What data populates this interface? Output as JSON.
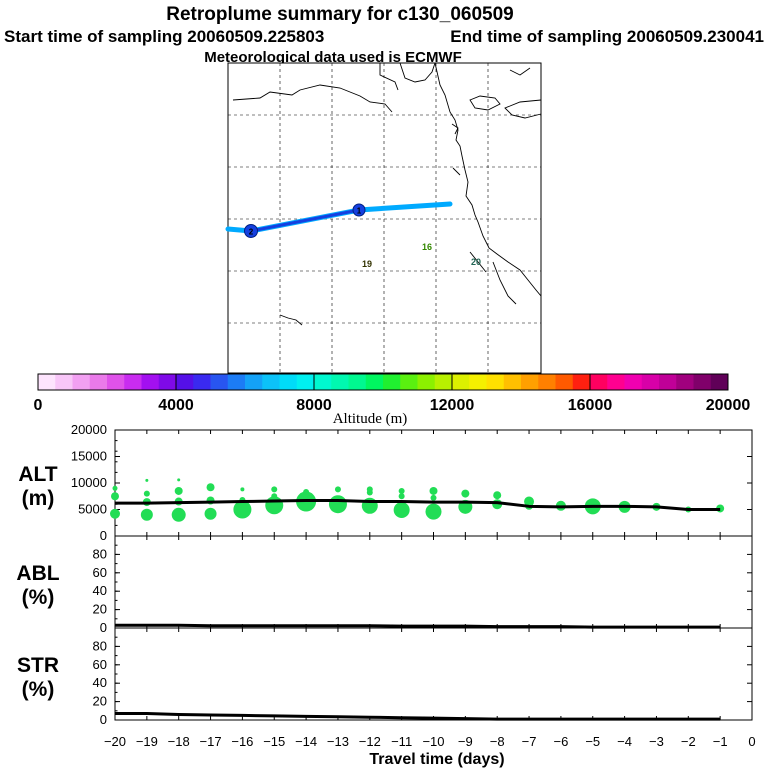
{
  "header": {
    "title": "Retroplume summary for c130_060509",
    "start": "Start time of sampling 20060509.225803",
    "end": "End time of sampling 20060509.230041",
    "met": "Meteorological data used is ECMWF"
  },
  "map": {
    "day_labels": [
      "16",
      "19",
      "20"
    ],
    "track_color_outer": "#00aaff",
    "track_color_inner": "#1540e0",
    "markers": [
      "1",
      "2"
    ]
  },
  "colorbar": {
    "label": "Altitude (m)",
    "ticks": [
      "0",
      "4000",
      "8000",
      "12000",
      "16000",
      "20000"
    ],
    "colors": [
      "#fde4fd",
      "#f8c6f8",
      "#f2a0f2",
      "#ea7aea",
      "#df52ea",
      "#c92cf0",
      "#a310f0",
      "#7f0ae8",
      "#5510e8",
      "#3a2af0",
      "#2855f0",
      "#1c7cf5",
      "#14a2f7",
      "#0cc2f8",
      "#00dcf8",
      "#00f0f0",
      "#00f8d0",
      "#00f8b0",
      "#00f890",
      "#00f660",
      "#20f030",
      "#5af010",
      "#8cf000",
      "#b8f000",
      "#dcf000",
      "#f5f000",
      "#ffe000",
      "#ffc000",
      "#ffa000",
      "#ff8000",
      "#ff5a00",
      "#ff2010",
      "#ff0060",
      "#ff0090",
      "#f000b0",
      "#d800a8",
      "#c00098",
      "#a0007e",
      "#80006a",
      "#600058"
    ]
  },
  "chart_data": [
    {
      "type": "line",
      "name": "ALT",
      "ylabel": "ALT",
      "yunit": "(m)",
      "x": [
        -20,
        -19,
        -18,
        -17,
        -16,
        -15,
        -14,
        -13,
        -12,
        -11,
        -10,
        -9,
        -8,
        -7,
        -6,
        -5,
        -4,
        -3,
        -2,
        -1
      ],
      "values": [
        6200,
        6200,
        6300,
        6400,
        6500,
        6600,
        6700,
        6700,
        6500,
        6500,
        6400,
        6400,
        6300,
        5600,
        5500,
        5600,
        5600,
        5500,
        5000,
        5000
      ],
      "ylim": [
        0,
        20000
      ],
      "yticks": [
        "0",
        "5000",
        "10000",
        "15000",
        "20000"
      ],
      "scatter": [
        {
          "x": -20,
          "y": 9000,
          "s": 2.5
        },
        {
          "x": -20,
          "y": 7500,
          "s": 4
        },
        {
          "x": -20,
          "y": 4200,
          "s": 5
        },
        {
          "x": -19,
          "y": 10500,
          "s": 1.5
        },
        {
          "x": -19,
          "y": 8000,
          "s": 3
        },
        {
          "x": -19,
          "y": 6400,
          "s": 4
        },
        {
          "x": -19,
          "y": 4000,
          "s": 6
        },
        {
          "x": -18,
          "y": 10600,
          "s": 1.5
        },
        {
          "x": -18,
          "y": 8500,
          "s": 4
        },
        {
          "x": -18,
          "y": 6500,
          "s": 4
        },
        {
          "x": -18,
          "y": 4000,
          "s": 7
        },
        {
          "x": -17,
          "y": 9200,
          "s": 4
        },
        {
          "x": -17,
          "y": 6700,
          "s": 4
        },
        {
          "x": -17,
          "y": 4200,
          "s": 6
        },
        {
          "x": -16,
          "y": 8800,
          "s": 2
        },
        {
          "x": -16,
          "y": 6800,
          "s": 3
        },
        {
          "x": -16,
          "y": 5000,
          "s": 9
        },
        {
          "x": -15,
          "y": 8800,
          "s": 3
        },
        {
          "x": -15,
          "y": 7500,
          "s": 3
        },
        {
          "x": -15,
          "y": 5800,
          "s": 9
        },
        {
          "x": -14,
          "y": 8300,
          "s": 3
        },
        {
          "x": -14,
          "y": 6500,
          "s": 10
        },
        {
          "x": -13,
          "y": 8800,
          "s": 3
        },
        {
          "x": -13,
          "y": 6000,
          "s": 9
        },
        {
          "x": -12,
          "y": 8800,
          "s": 3
        },
        {
          "x": -12,
          "y": 8200,
          "s": 3
        },
        {
          "x": -12,
          "y": 5700,
          "s": 8
        },
        {
          "x": -11,
          "y": 8500,
          "s": 3
        },
        {
          "x": -11,
          "y": 7500,
          "s": 3
        },
        {
          "x": -11,
          "y": 4900,
          "s": 8
        },
        {
          "x": -10,
          "y": 8500,
          "s": 4
        },
        {
          "x": -10,
          "y": 7200,
          "s": 3
        },
        {
          "x": -10,
          "y": 4600,
          "s": 8
        },
        {
          "x": -9,
          "y": 8000,
          "s": 4
        },
        {
          "x": -9,
          "y": 5500,
          "s": 7
        },
        {
          "x": -8,
          "y": 7700,
          "s": 4
        },
        {
          "x": -8,
          "y": 6000,
          "s": 5
        },
        {
          "x": -7,
          "y": 6500,
          "s": 5
        },
        {
          "x": -7,
          "y": 5700,
          "s": 4
        },
        {
          "x": -6,
          "y": 5700,
          "s": 5
        },
        {
          "x": -5,
          "y": 5600,
          "s": 8
        },
        {
          "x": -4,
          "y": 5500,
          "s": 6
        },
        {
          "x": -3,
          "y": 5500,
          "s": 4
        },
        {
          "x": -2,
          "y": 5000,
          "s": 3
        },
        {
          "x": -1,
          "y": 5200,
          "s": 4
        }
      ],
      "scatter_color": "#22dd55"
    },
    {
      "type": "line",
      "name": "ABL",
      "ylabel": "ABL",
      "yunit": "(%)",
      "x": [
        -20,
        -19,
        -18,
        -17,
        -16,
        -15,
        -14,
        -13,
        -12,
        -11,
        -10,
        -9,
        -8,
        -7,
        -6,
        -5,
        -4,
        -3,
        -2,
        -1
      ],
      "values": [
        3,
        3,
        3,
        2.5,
        2.5,
        2.5,
        2.5,
        2.5,
        2.5,
        2,
        2,
        2,
        1.5,
        1.5,
        1.5,
        1,
        1,
        1,
        1,
        1
      ],
      "ylim": [
        0,
        100
      ],
      "yticks": [
        "0",
        "20",
        "40",
        "60",
        "80"
      ]
    },
    {
      "type": "line",
      "name": "STR",
      "ylabel": "STR",
      "yunit": "(%)",
      "x": [
        -20,
        -19,
        -18,
        -17,
        -16,
        -15,
        -14,
        -13,
        -12,
        -11,
        -10,
        -9,
        -8,
        -7,
        -6,
        -5,
        -4,
        -3,
        -2,
        -1
      ],
      "values": [
        7,
        7,
        6,
        5.5,
        5,
        4.5,
        4,
        3.5,
        3,
        2.5,
        2,
        1.5,
        1,
        1,
        1,
        1,
        1,
        1,
        1,
        1
      ],
      "ylim": [
        0,
        100
      ],
      "yticks": [
        "0",
        "20",
        "40",
        "60",
        "80"
      ]
    }
  ],
  "xaxis": {
    "xlabel": "Travel time (days)",
    "xlim": [
      -20,
      0
    ],
    "xticks": [
      "−20",
      "−19",
      "−18",
      "−17",
      "−16",
      "−15",
      "−14",
      "−13",
      "−12",
      "−11",
      "−10",
      "−9",
      "−8",
      "−7",
      "−6",
      "−5",
      "−4",
      "−3",
      "−2",
      "−1",
      "0"
    ]
  }
}
